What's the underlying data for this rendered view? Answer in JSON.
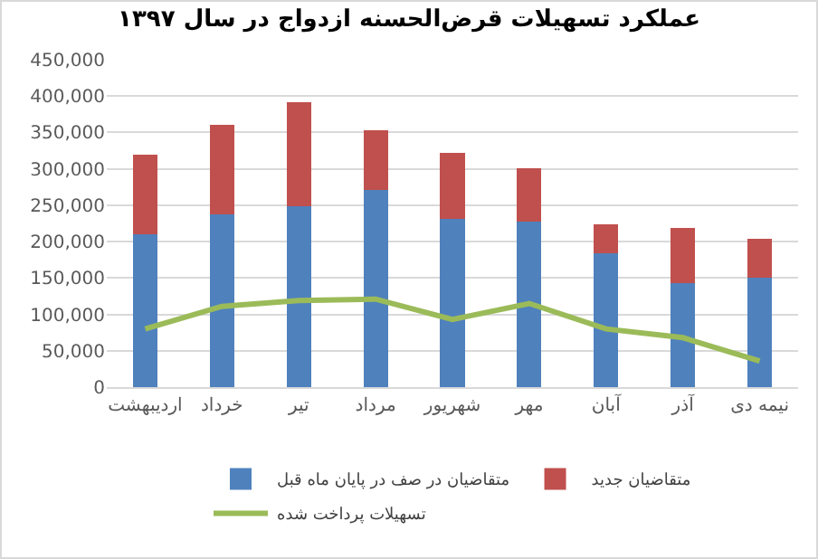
{
  "chart_data": {
    "type": "bar",
    "stacked": true,
    "title": "عملکرد تسهیلات قرض‌الحسنه ازدواج در سال ۱۳۹۷",
    "categories": [
      "اردیبهشت",
      "خرداد",
      "تیر",
      "مرداد",
      "شهریور",
      "مهر",
      "آبان",
      "آذر",
      "نیمه دی"
    ],
    "series": [
      {
        "name": "متقاضیان در صف در پایان ماه قبل",
        "color": "#4f81bd",
        "values": [
          210000,
          237000,
          249000,
          271000,
          231000,
          227000,
          184000,
          143000,
          150000
        ]
      },
      {
        "name": "متقاضیان جدید",
        "color": "#c0504d",
        "values": [
          110000,
          123000,
          142000,
          82000,
          91000,
          74000,
          40000,
          76000,
          54000
        ]
      },
      {
        "name": "تسهیلات پرداخت شده",
        "type": "line",
        "color": "#9bbb59",
        "values": [
          80000,
          111000,
          119000,
          121000,
          93000,
          115000,
          80000,
          68000,
          36000
        ]
      }
    ],
    "ylim": [
      0,
      450000
    ],
    "yticks": [
      {
        "value": 0,
        "label": "0"
      },
      {
        "value": 50000,
        "label": "50,000"
      },
      {
        "value": 100000,
        "label": "100,000"
      },
      {
        "value": 150000,
        "label": "150,000"
      },
      {
        "value": 200000,
        "label": "200,000"
      },
      {
        "value": 250000,
        "label": "250,000"
      },
      {
        "value": 300000,
        "label": "300,000"
      },
      {
        "value": 350000,
        "label": "350,000"
      },
      {
        "value": 400000,
        "label": "400,000"
      },
      {
        "value": 450000,
        "label": "450,000"
      }
    ],
    "grid": "y",
    "legend": "bottom"
  }
}
